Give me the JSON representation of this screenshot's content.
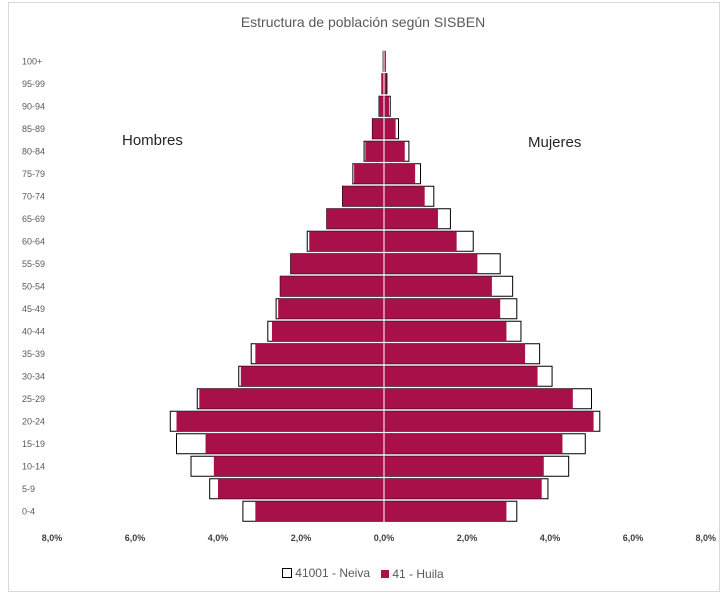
{
  "chart_data": {
    "type": "bar",
    "title": "Estructura de población según SISBEN",
    "left_label": "Hombres",
    "right_label": "Mujeres",
    "categories": [
      "100+",
      "95-99",
      "90-94",
      "85-89",
      "80-84",
      "75-79",
      "70-74",
      "65-69",
      "60-64",
      "55-59",
      "50-54",
      "45-49",
      "40-44",
      "35-39",
      "30-34",
      "25-29",
      "20-24",
      "15-19",
      "10-14",
      "5-9",
      "0-4"
    ],
    "xlim": [
      -8.0,
      8.0
    ],
    "xticks": [
      "8,0%",
      "6,0%",
      "4,0%",
      "2,0%",
      "0,0%",
      "2,0%",
      "4,0%",
      "6,0%",
      "8,0%"
    ],
    "series": [
      {
        "name": "41001 - Neiva",
        "color": "#ffffff",
        "outline": "#000000",
        "hombres": [
          0.02,
          0.05,
          0.12,
          0.28,
          0.48,
          0.75,
          1.0,
          1.38,
          1.85,
          2.25,
          2.5,
          2.6,
          2.8,
          3.2,
          3.5,
          4.5,
          5.15,
          5.0,
          4.65,
          4.2,
          3.4
        ],
        "mujeres": [
          0.03,
          0.07,
          0.15,
          0.35,
          0.6,
          0.88,
          1.2,
          1.6,
          2.15,
          2.8,
          3.1,
          3.2,
          3.3,
          3.75,
          4.05,
          5.0,
          5.2,
          4.85,
          4.45,
          3.95,
          3.2
        ]
      },
      {
        "name": "41 - Huila",
        "color": "#a8104a",
        "hombres": [
          0.02,
          0.05,
          0.12,
          0.28,
          0.45,
          0.72,
          1.0,
          1.38,
          1.8,
          2.25,
          2.5,
          2.55,
          2.7,
          3.1,
          3.45,
          4.45,
          5.0,
          4.3,
          4.1,
          4.0,
          3.1
        ],
        "mujeres": [
          0.03,
          0.06,
          0.12,
          0.28,
          0.5,
          0.75,
          0.98,
          1.3,
          1.75,
          2.25,
          2.6,
          2.8,
          2.95,
          3.4,
          3.7,
          4.55,
          5.05,
          4.3,
          3.85,
          3.8,
          2.95
        ]
      }
    ],
    "legend": [
      "41001 - Neiva",
      "41 - Huila"
    ],
    "legend_position": "bottom",
    "grid": false
  }
}
